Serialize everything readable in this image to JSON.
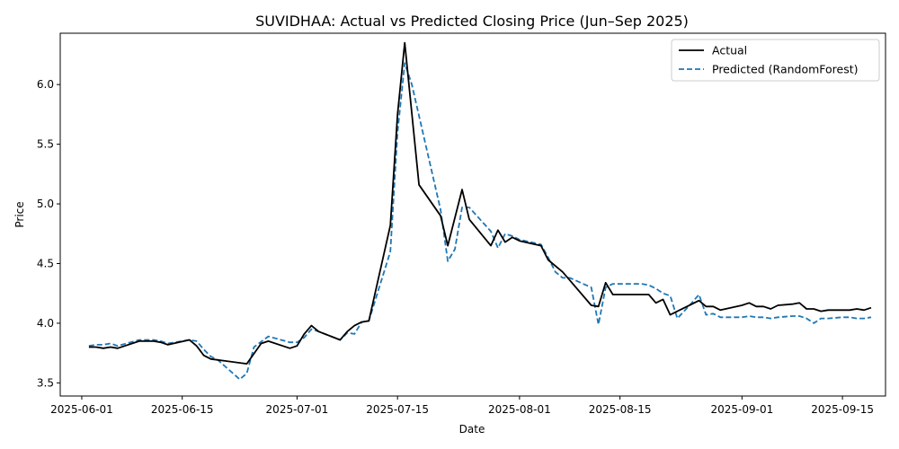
{
  "chart_data": {
    "type": "line",
    "title": "SUVIDHAA: Actual vs Predicted Closing Price (Jun–Sep 2025)",
    "xlabel": "Date",
    "ylabel": "Price",
    "xlim": [
      "2025-05-29",
      "2025-09-21"
    ],
    "ylim": [
      3.39,
      6.43
    ],
    "x_ticks": [
      "2025-06-01",
      "2025-06-15",
      "2025-07-01",
      "2025-07-15",
      "2025-08-01",
      "2025-08-15",
      "2025-09-01",
      "2025-09-15"
    ],
    "y_ticks": [
      3.5,
      4.0,
      4.5,
      5.0,
      5.5,
      6.0
    ],
    "grid": false,
    "legend_position": "top-right",
    "series": [
      {
        "name": "Actual",
        "color": "#000000",
        "style": "solid",
        "points": [
          [
            "2025-06-02",
            3.8
          ],
          [
            "2025-06-03",
            3.8
          ],
          [
            "2025-06-04",
            3.79
          ],
          [
            "2025-06-05",
            3.8
          ],
          [
            "2025-06-06",
            3.79
          ],
          [
            "2025-06-09",
            3.85
          ],
          [
            "2025-06-10",
            3.85
          ],
          [
            "2025-06-11",
            3.85
          ],
          [
            "2025-06-12",
            3.84
          ],
          [
            "2025-06-13",
            3.82
          ],
          [
            "2025-06-16",
            3.86
          ],
          [
            "2025-06-17",
            3.81
          ],
          [
            "2025-06-18",
            3.73
          ],
          [
            "2025-06-19",
            3.7
          ],
          [
            "2025-06-24",
            3.66
          ],
          [
            "2025-06-26",
            3.83
          ],
          [
            "2025-06-27",
            3.85
          ],
          [
            "2025-06-30",
            3.79
          ],
          [
            "2025-07-01",
            3.81
          ],
          [
            "2025-07-02",
            3.91
          ],
          [
            "2025-07-03",
            3.98
          ],
          [
            "2025-07-04",
            3.93
          ],
          [
            "2025-07-07",
            3.86
          ],
          [
            "2025-07-08",
            3.93
          ],
          [
            "2025-07-09",
            3.98
          ],
          [
            "2025-07-10",
            4.01
          ],
          [
            "2025-07-11",
            4.02
          ],
          [
            "2025-07-14",
            4.82
          ],
          [
            "2025-07-15",
            5.75
          ],
          [
            "2025-07-16",
            6.35
          ],
          [
            "2025-07-18",
            5.16
          ],
          [
            "2025-07-21",
            4.9
          ],
          [
            "2025-07-22",
            4.65
          ],
          [
            "2025-07-24",
            5.12
          ],
          [
            "2025-07-25",
            4.87
          ],
          [
            "2025-07-28",
            4.65
          ],
          [
            "2025-07-29",
            4.78
          ],
          [
            "2025-07-30",
            4.68
          ],
          [
            "2025-07-31",
            4.72
          ],
          [
            "2025-08-01",
            4.69
          ],
          [
            "2025-08-04",
            4.65
          ],
          [
            "2025-08-05",
            4.53
          ],
          [
            "2025-08-07",
            4.43
          ],
          [
            "2025-08-08",
            4.36
          ],
          [
            "2025-08-11",
            4.15
          ],
          [
            "2025-08-12",
            4.14
          ],
          [
            "2025-08-13",
            4.34
          ],
          [
            "2025-08-14",
            4.24
          ],
          [
            "2025-08-18",
            4.24
          ],
          [
            "2025-08-19",
            4.24
          ],
          [
            "2025-08-20",
            4.17
          ],
          [
            "2025-08-21",
            4.2
          ],
          [
            "2025-08-22",
            4.07
          ],
          [
            "2025-08-23",
            4.1
          ],
          [
            "2025-08-25",
            4.16
          ],
          [
            "2025-08-26",
            4.19
          ],
          [
            "2025-08-27",
            4.14
          ],
          [
            "2025-08-28",
            4.14
          ],
          [
            "2025-08-29",
            4.11
          ],
          [
            "2025-09-01",
            4.15
          ],
          [
            "2025-09-02",
            4.17
          ],
          [
            "2025-09-03",
            4.14
          ],
          [
            "2025-09-04",
            4.14
          ],
          [
            "2025-09-05",
            4.12
          ],
          [
            "2025-09-06",
            4.15
          ],
          [
            "2025-09-08",
            4.16
          ],
          [
            "2025-09-09",
            4.17
          ],
          [
            "2025-09-10",
            4.12
          ],
          [
            "2025-09-11",
            4.12
          ],
          [
            "2025-09-12",
            4.1
          ],
          [
            "2025-09-13",
            4.11
          ],
          [
            "2025-09-15",
            4.11
          ],
          [
            "2025-09-16",
            4.11
          ],
          [
            "2025-09-17",
            4.12
          ],
          [
            "2025-09-18",
            4.11
          ],
          [
            "2025-09-19",
            4.13
          ]
        ]
      },
      {
        "name": "Predicted (RandomForest)",
        "color": "#1f77b4",
        "style": "dashed",
        "points": [
          [
            "2025-06-02",
            3.81
          ],
          [
            "2025-06-03",
            3.82
          ],
          [
            "2025-06-04",
            3.82
          ],
          [
            "2025-06-05",
            3.83
          ],
          [
            "2025-06-06",
            3.81
          ],
          [
            "2025-06-09",
            3.86
          ],
          [
            "2025-06-10",
            3.86
          ],
          [
            "2025-06-11",
            3.86
          ],
          [
            "2025-06-12",
            3.85
          ],
          [
            "2025-06-13",
            3.83
          ],
          [
            "2025-06-16",
            3.86
          ],
          [
            "2025-06-17",
            3.85
          ],
          [
            "2025-06-18",
            3.78
          ],
          [
            "2025-06-19",
            3.72
          ],
          [
            "2025-06-20",
            3.69
          ],
          [
            "2025-06-23",
            3.53
          ],
          [
            "2025-06-24",
            3.58
          ],
          [
            "2025-06-25",
            3.8
          ],
          [
            "2025-06-27",
            3.89
          ],
          [
            "2025-06-30",
            3.84
          ],
          [
            "2025-07-01",
            3.84
          ],
          [
            "2025-07-02",
            3.88
          ],
          [
            "2025-07-03",
            3.95
          ],
          [
            "2025-07-04",
            3.93
          ],
          [
            "2025-07-07",
            3.86
          ],
          [
            "2025-07-08",
            3.92
          ],
          [
            "2025-07-09",
            3.91
          ],
          [
            "2025-07-10",
            4.01
          ],
          [
            "2025-07-11",
            4.02
          ],
          [
            "2025-07-14",
            4.6
          ],
          [
            "2025-07-15",
            5.6
          ],
          [
            "2025-07-16",
            6.18
          ],
          [
            "2025-07-17",
            6.0
          ],
          [
            "2025-07-21",
            4.95
          ],
          [
            "2025-07-22",
            4.52
          ],
          [
            "2025-07-23",
            4.62
          ],
          [
            "2025-07-24",
            4.97
          ],
          [
            "2025-07-25",
            4.97
          ],
          [
            "2025-07-28",
            4.77
          ],
          [
            "2025-07-29",
            4.63
          ],
          [
            "2025-07-30",
            4.75
          ],
          [
            "2025-07-31",
            4.73
          ],
          [
            "2025-08-01",
            4.7
          ],
          [
            "2025-08-04",
            4.66
          ],
          [
            "2025-08-05",
            4.55
          ],
          [
            "2025-08-06",
            4.43
          ],
          [
            "2025-08-07",
            4.38
          ],
          [
            "2025-08-08",
            4.38
          ],
          [
            "2025-08-11",
            4.3
          ],
          [
            "2025-08-12",
            3.99
          ],
          [
            "2025-08-13",
            4.3
          ],
          [
            "2025-08-14",
            4.33
          ],
          [
            "2025-08-18",
            4.33
          ],
          [
            "2025-08-19",
            4.32
          ],
          [
            "2025-08-20",
            4.29
          ],
          [
            "2025-08-21",
            4.25
          ],
          [
            "2025-08-22",
            4.23
          ],
          [
            "2025-08-23",
            4.04
          ],
          [
            "2025-08-25",
            4.17
          ],
          [
            "2025-08-26",
            4.24
          ],
          [
            "2025-08-27",
            4.07
          ],
          [
            "2025-08-28",
            4.08
          ],
          [
            "2025-08-29",
            4.05
          ],
          [
            "2025-09-01",
            4.05
          ],
          [
            "2025-09-02",
            4.06
          ],
          [
            "2025-09-03",
            4.05
          ],
          [
            "2025-09-04",
            4.05
          ],
          [
            "2025-09-05",
            4.04
          ],
          [
            "2025-09-06",
            4.05
          ],
          [
            "2025-09-08",
            4.06
          ],
          [
            "2025-09-09",
            4.06
          ],
          [
            "2025-09-10",
            4.04
          ],
          [
            "2025-09-11",
            4.0
          ],
          [
            "2025-09-12",
            4.04
          ],
          [
            "2025-09-13",
            4.04
          ],
          [
            "2025-09-15",
            4.05
          ],
          [
            "2025-09-16",
            4.05
          ],
          [
            "2025-09-17",
            4.04
          ],
          [
            "2025-09-18",
            4.04
          ],
          [
            "2025-09-19",
            4.05
          ]
        ]
      }
    ]
  }
}
